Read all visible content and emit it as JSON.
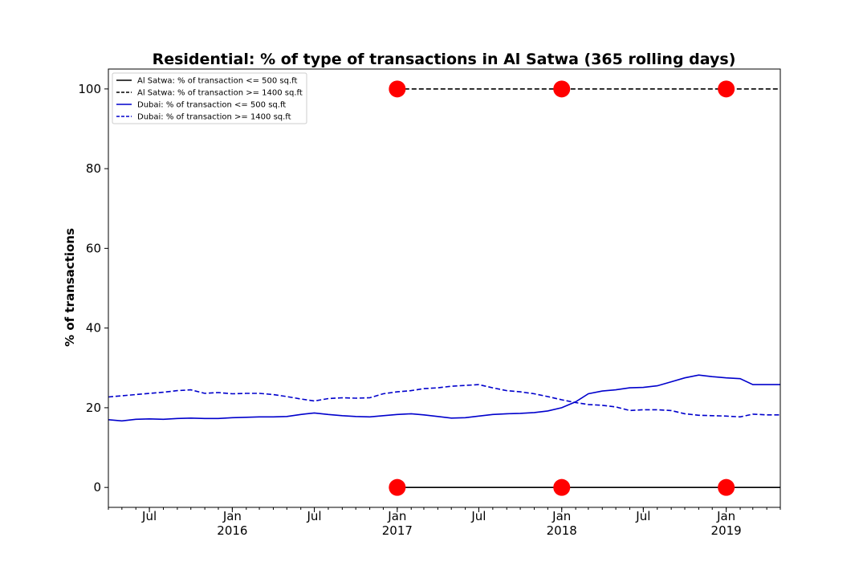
{
  "chart_data": {
    "type": "line",
    "title": "Residential: % of type of transactions in Al Satwa (365 rolling days)",
    "xlabel": "",
    "ylabel": "% of transactions",
    "xlim": [
      "2015-04-01",
      "2019-05-01"
    ],
    "ylim": [
      -5,
      105
    ],
    "grid": false,
    "legend_position": "top-left",
    "y_ticks": [
      0,
      20,
      40,
      60,
      80,
      100
    ],
    "x_ticks": [
      {
        "date": "2015-07-01",
        "label": "Jul",
        "year": ""
      },
      {
        "date": "2016-01-01",
        "label": "Jan",
        "year": "2016"
      },
      {
        "date": "2016-07-01",
        "label": "Jul",
        "year": ""
      },
      {
        "date": "2017-01-01",
        "label": "Jan",
        "year": "2017"
      },
      {
        "date": "2017-07-01",
        "label": "Jul",
        "year": ""
      },
      {
        "date": "2018-01-01",
        "label": "Jan",
        "year": "2018"
      },
      {
        "date": "2018-07-01",
        "label": "Jul",
        "year": ""
      },
      {
        "date": "2019-01-01",
        "label": "Jan",
        "year": "2019"
      }
    ],
    "series": [
      {
        "name": "Al Satwa: % of transaction <= 500 sq.ft",
        "color": "#000000",
        "dash": "solid",
        "x": [
          "2017-01-01",
          "2019-05-01"
        ],
        "y": [
          0,
          0
        ]
      },
      {
        "name": "Al Satwa: % of transaction >= 1400 sq.ft",
        "color": "#000000",
        "dash": "dashed",
        "x": [
          "2017-01-01",
          "2019-05-01"
        ],
        "y": [
          100,
          100
        ]
      },
      {
        "name": "Dubai: % of transaction <= 500 sq.ft",
        "color": "#0000cc",
        "dash": "solid",
        "x": [
          "2015-04-01",
          "2015-05-01",
          "2015-06-01",
          "2015-07-01",
          "2015-08-01",
          "2015-09-01",
          "2015-10-01",
          "2015-11-01",
          "2015-12-01",
          "2016-01-01",
          "2016-02-01",
          "2016-03-01",
          "2016-04-01",
          "2016-05-01",
          "2016-06-01",
          "2016-07-01",
          "2016-08-01",
          "2016-09-01",
          "2016-10-01",
          "2016-11-01",
          "2016-12-01",
          "2017-01-01",
          "2017-02-01",
          "2017-03-01",
          "2017-04-01",
          "2017-05-01",
          "2017-06-01",
          "2017-07-01",
          "2017-08-01",
          "2017-09-01",
          "2017-10-01",
          "2017-11-01",
          "2017-12-01",
          "2018-01-01",
          "2018-02-01",
          "2018-03-01",
          "2018-04-01",
          "2018-05-01",
          "2018-06-01",
          "2018-07-01",
          "2018-08-01",
          "2018-09-01",
          "2018-10-01",
          "2018-11-01",
          "2018-12-01",
          "2019-01-01",
          "2019-02-01",
          "2019-03-01",
          "2019-04-01",
          "2019-05-01"
        ],
        "y": [
          17.0,
          16.7,
          17.1,
          17.2,
          17.1,
          17.3,
          17.4,
          17.3,
          17.3,
          17.5,
          17.6,
          17.7,
          17.7,
          17.8,
          18.3,
          18.7,
          18.3,
          18.0,
          17.8,
          17.7,
          18.0,
          18.3,
          18.5,
          18.2,
          17.8,
          17.4,
          17.5,
          17.9,
          18.3,
          18.5,
          18.6,
          18.8,
          19.2,
          20.0,
          21.5,
          23.5,
          24.2,
          24.5,
          25.0,
          25.1,
          25.5,
          26.5,
          27.5,
          28.2,
          27.8,
          27.5,
          27.3,
          25.8,
          25.8,
          25.8
        ]
      },
      {
        "name": "Dubai: % of transaction >= 1400 sq.ft",
        "color": "#0000cc",
        "dash": "dashed",
        "x": [
          "2015-04-01",
          "2015-05-01",
          "2015-06-01",
          "2015-07-01",
          "2015-08-01",
          "2015-09-01",
          "2015-10-01",
          "2015-11-01",
          "2015-12-01",
          "2016-01-01",
          "2016-02-01",
          "2016-03-01",
          "2016-04-01",
          "2016-05-01",
          "2016-06-01",
          "2016-07-01",
          "2016-08-01",
          "2016-09-01",
          "2016-10-01",
          "2016-11-01",
          "2016-12-01",
          "2017-01-01",
          "2017-02-01",
          "2017-03-01",
          "2017-04-01",
          "2017-05-01",
          "2017-06-01",
          "2017-07-01",
          "2017-08-01",
          "2017-09-01",
          "2017-10-01",
          "2017-11-01",
          "2017-12-01",
          "2018-01-01",
          "2018-02-01",
          "2018-03-01",
          "2018-04-01",
          "2018-05-01",
          "2018-06-01",
          "2018-07-01",
          "2018-08-01",
          "2018-09-01",
          "2018-10-01",
          "2018-11-01",
          "2018-12-01",
          "2019-01-01",
          "2019-02-01",
          "2019-03-01",
          "2019-04-01",
          "2019-05-01"
        ],
        "y": [
          22.7,
          23.0,
          23.3,
          23.6,
          23.9,
          24.3,
          24.5,
          23.6,
          23.8,
          23.5,
          23.6,
          23.6,
          23.3,
          22.8,
          22.2,
          21.7,
          22.3,
          22.5,
          22.4,
          22.5,
          23.5,
          24.0,
          24.3,
          24.8,
          25.0,
          25.4,
          25.6,
          25.8,
          25.0,
          24.3,
          24.0,
          23.5,
          22.8,
          22.0,
          21.3,
          20.8,
          20.6,
          20.2,
          19.3,
          19.5,
          19.5,
          19.3,
          18.5,
          18.1,
          18.0,
          17.9,
          17.7,
          18.4,
          18.2,
          18.2
        ]
      }
    ],
    "markers": {
      "color": "#ff0000",
      "points": [
        {
          "x": "2017-01-01",
          "y": 0
        },
        {
          "x": "2018-01-01",
          "y": 0
        },
        {
          "x": "2019-01-01",
          "y": 0
        },
        {
          "x": "2017-01-01",
          "y": 100
        },
        {
          "x": "2018-01-01",
          "y": 100
        },
        {
          "x": "2019-01-01",
          "y": 100
        }
      ]
    }
  }
}
